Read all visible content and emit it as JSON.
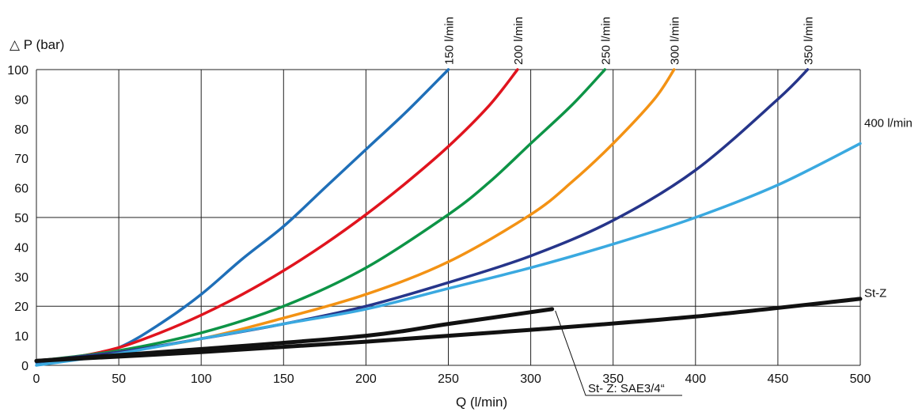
{
  "chart_data": {
    "type": "line",
    "ylabel": "△ P (bar)",
    "xlabel": "Q (l/min)",
    "xlim": [
      0,
      500
    ],
    "ylim": [
      0,
      100
    ],
    "x_ticks": [
      "0",
      "50",
      "100",
      "150",
      "200",
      "250",
      "300",
      "350",
      "400",
      "450",
      "500"
    ],
    "y_ticks": [
      "0",
      "10",
      "20",
      "30",
      "40",
      "50",
      "60",
      "70",
      "80",
      "90",
      "100"
    ],
    "grid": true,
    "series": [
      {
        "name": "150 l/min",
        "color": "#1f6fb8",
        "x": [
          0,
          25,
          50,
          75,
          100,
          125,
          150,
          175,
          200,
          225,
          250
        ],
        "y": [
          1,
          2.5,
          6,
          14,
          24,
          36,
          47,
          60,
          73,
          86,
          100
        ]
      },
      {
        "name": "200 l/min",
        "color": "#e0141e",
        "x": [
          0,
          25,
          50,
          75,
          100,
          125,
          150,
          175,
          200,
          225,
          250,
          275,
          292
        ],
        "y": [
          1.5,
          3,
          6,
          11,
          17,
          24,
          32,
          41,
          51,
          62,
          74,
          88,
          100
        ]
      },
      {
        "name": "250 l/min",
        "color": "#0d9446",
        "x": [
          0,
          50,
          100,
          150,
          200,
          250,
          275,
          300,
          325,
          345
        ],
        "y": [
          1.5,
          5,
          11,
          20,
          33,
          51,
          62,
          75,
          88,
          100
        ]
      },
      {
        "name": "300 l/min",
        "color": "#f39214",
        "x": [
          0,
          50,
          100,
          150,
          200,
          250,
          300,
          325,
          350,
          375,
          387
        ],
        "y": [
          1.5,
          4.5,
          9,
          16,
          24,
          35,
          51,
          62,
          75,
          90,
          100
        ]
      },
      {
        "name": "350 l/min",
        "color": "#26358a",
        "x": [
          0,
          50,
          100,
          150,
          200,
          250,
          300,
          350,
          400,
          450,
          468
        ],
        "y": [
          1.5,
          4.5,
          9,
          14,
          20,
          28,
          37,
          49,
          66,
          90,
          100
        ]
      },
      {
        "name": "400 l/min",
        "color": "#3aa9e0",
        "x": [
          0,
          50,
          100,
          150,
          200,
          250,
          300,
          350,
          400,
          450,
          500
        ],
        "y": [
          0,
          4,
          9,
          14,
          19,
          26,
          33,
          41,
          50,
          61,
          75
        ]
      },
      {
        "name": "St-Z",
        "color": "#111111",
        "x": [
          0,
          100,
          200,
          300,
          400,
          500
        ],
        "y": [
          1.5,
          4.5,
          8,
          12,
          16.5,
          22.5
        ]
      },
      {
        "name": "St- Z: SAE3/4“",
        "color": "#111111",
        "x": [
          0,
          100,
          200,
          250,
          313
        ],
        "y": [
          1.5,
          5.5,
          10,
          14,
          19
        ]
      }
    ]
  }
}
